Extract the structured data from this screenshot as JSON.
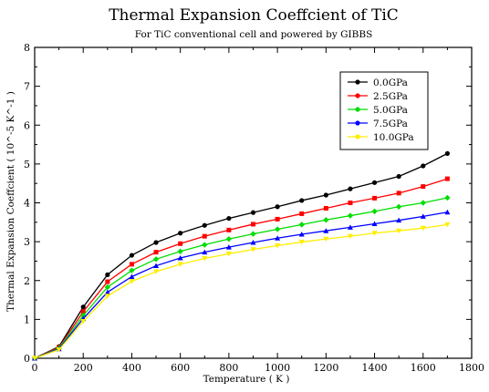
{
  "chart_data": {
    "type": "line",
    "title": "Thermal Expansion Coeffcient of TiC",
    "subtitle": "For TiC conventional cell and powered by GIBBS",
    "xlabel": "Temperature ( K )",
    "ylabel": "Thermal Expansion Coeffcient ( 10^-5  K^-1 )",
    "xlim": [
      0,
      1800
    ],
    "ylim": [
      0,
      8
    ],
    "x_ticks": [
      0,
      200,
      400,
      600,
      800,
      1000,
      1200,
      1400,
      1600,
      1800
    ],
    "y_ticks": [
      0,
      1,
      2,
      3,
      4,
      5,
      6,
      7,
      8
    ],
    "grid": false,
    "legend_position": "top-right",
    "x": [
      0,
      100,
      200,
      300,
      400,
      500,
      600,
      700,
      800,
      900,
      1000,
      1100,
      1200,
      1300,
      1400,
      1500,
      1600,
      1700
    ],
    "series": [
      {
        "name": "0.0GPa",
        "color": "#000000",
        "values": [
          0.0,
          0.3,
          1.32,
          2.15,
          2.65,
          2.98,
          3.22,
          3.42,
          3.6,
          3.75,
          3.9,
          4.06,
          4.2,
          4.36,
          4.52,
          4.68,
          4.95,
          5.27
        ]
      },
      {
        "name": "2.5GPa",
        "color": "#ff0000",
        "values": [
          0.0,
          0.28,
          1.2,
          1.97,
          2.42,
          2.73,
          2.95,
          3.14,
          3.3,
          3.45,
          3.58,
          3.72,
          3.86,
          4.0,
          4.12,
          4.25,
          4.42,
          4.62
        ]
      },
      {
        "name": "5.0GPa",
        "color": "#00dd00",
        "values": [
          0.0,
          0.26,
          1.1,
          1.83,
          2.26,
          2.55,
          2.75,
          2.92,
          3.07,
          3.2,
          3.32,
          3.44,
          3.56,
          3.67,
          3.78,
          3.9,
          4.0,
          4.13
        ]
      },
      {
        "name": "7.5GPa",
        "color": "#0000ff",
        "values": [
          0.0,
          0.24,
          1.02,
          1.7,
          2.1,
          2.38,
          2.58,
          2.73,
          2.86,
          2.98,
          3.09,
          3.19,
          3.28,
          3.37,
          3.46,
          3.55,
          3.65,
          3.76
        ]
      },
      {
        "name": "10.0GPa",
        "color": "#ffee00",
        "values": [
          0.0,
          0.22,
          0.95,
          1.6,
          1.98,
          2.23,
          2.42,
          2.57,
          2.69,
          2.8,
          2.9,
          2.99,
          3.07,
          3.14,
          3.22,
          3.28,
          3.35,
          3.44
        ]
      }
    ]
  }
}
